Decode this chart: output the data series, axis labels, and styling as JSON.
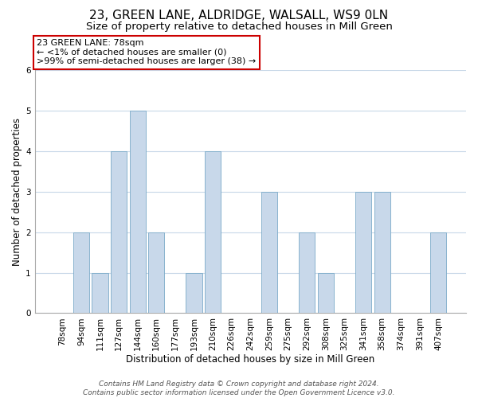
{
  "title": "23, GREEN LANE, ALDRIDGE, WALSALL, WS9 0LN",
  "subtitle": "Size of property relative to detached houses in Mill Green",
  "xlabel": "Distribution of detached houses by size in Mill Green",
  "ylabel": "Number of detached properties",
  "bar_labels": [
    "78sqm",
    "94sqm",
    "111sqm",
    "127sqm",
    "144sqm",
    "160sqm",
    "177sqm",
    "193sqm",
    "210sqm",
    "226sqm",
    "242sqm",
    "259sqm",
    "275sqm",
    "292sqm",
    "308sqm",
    "325sqm",
    "341sqm",
    "358sqm",
    "374sqm",
    "391sqm",
    "407sqm"
  ],
  "bar_values": [
    0,
    2,
    1,
    4,
    5,
    2,
    0,
    1,
    4,
    0,
    0,
    3,
    0,
    2,
    1,
    0,
    3,
    3,
    0,
    0,
    2
  ],
  "bar_color": "#c8d8ea",
  "bar_edge_color": "#7aaac8",
  "ylim": [
    0,
    6
  ],
  "yticks": [
    0,
    1,
    2,
    3,
    4,
    5,
    6
  ],
  "annotation_title": "23 GREEN LANE: 78sqm",
  "annotation_line1": "← <1% of detached houses are smaller (0)",
  "annotation_line2": ">99% of semi-detached houses are larger (38) →",
  "annotation_box_color": "#ffffff",
  "annotation_box_edge": "#cc0000",
  "footer_line1": "Contains HM Land Registry data © Crown copyright and database right 2024.",
  "footer_line2": "Contains public sector information licensed under the Open Government Licence v3.0.",
  "background_color": "#ffffff",
  "grid_color": "#c8d8e8",
  "title_fontsize": 11,
  "subtitle_fontsize": 9.5,
  "xlabel_fontsize": 8.5,
  "ylabel_fontsize": 8.5,
  "tick_fontsize": 7.5,
  "annot_fontsize": 8,
  "footer_fontsize": 6.5
}
